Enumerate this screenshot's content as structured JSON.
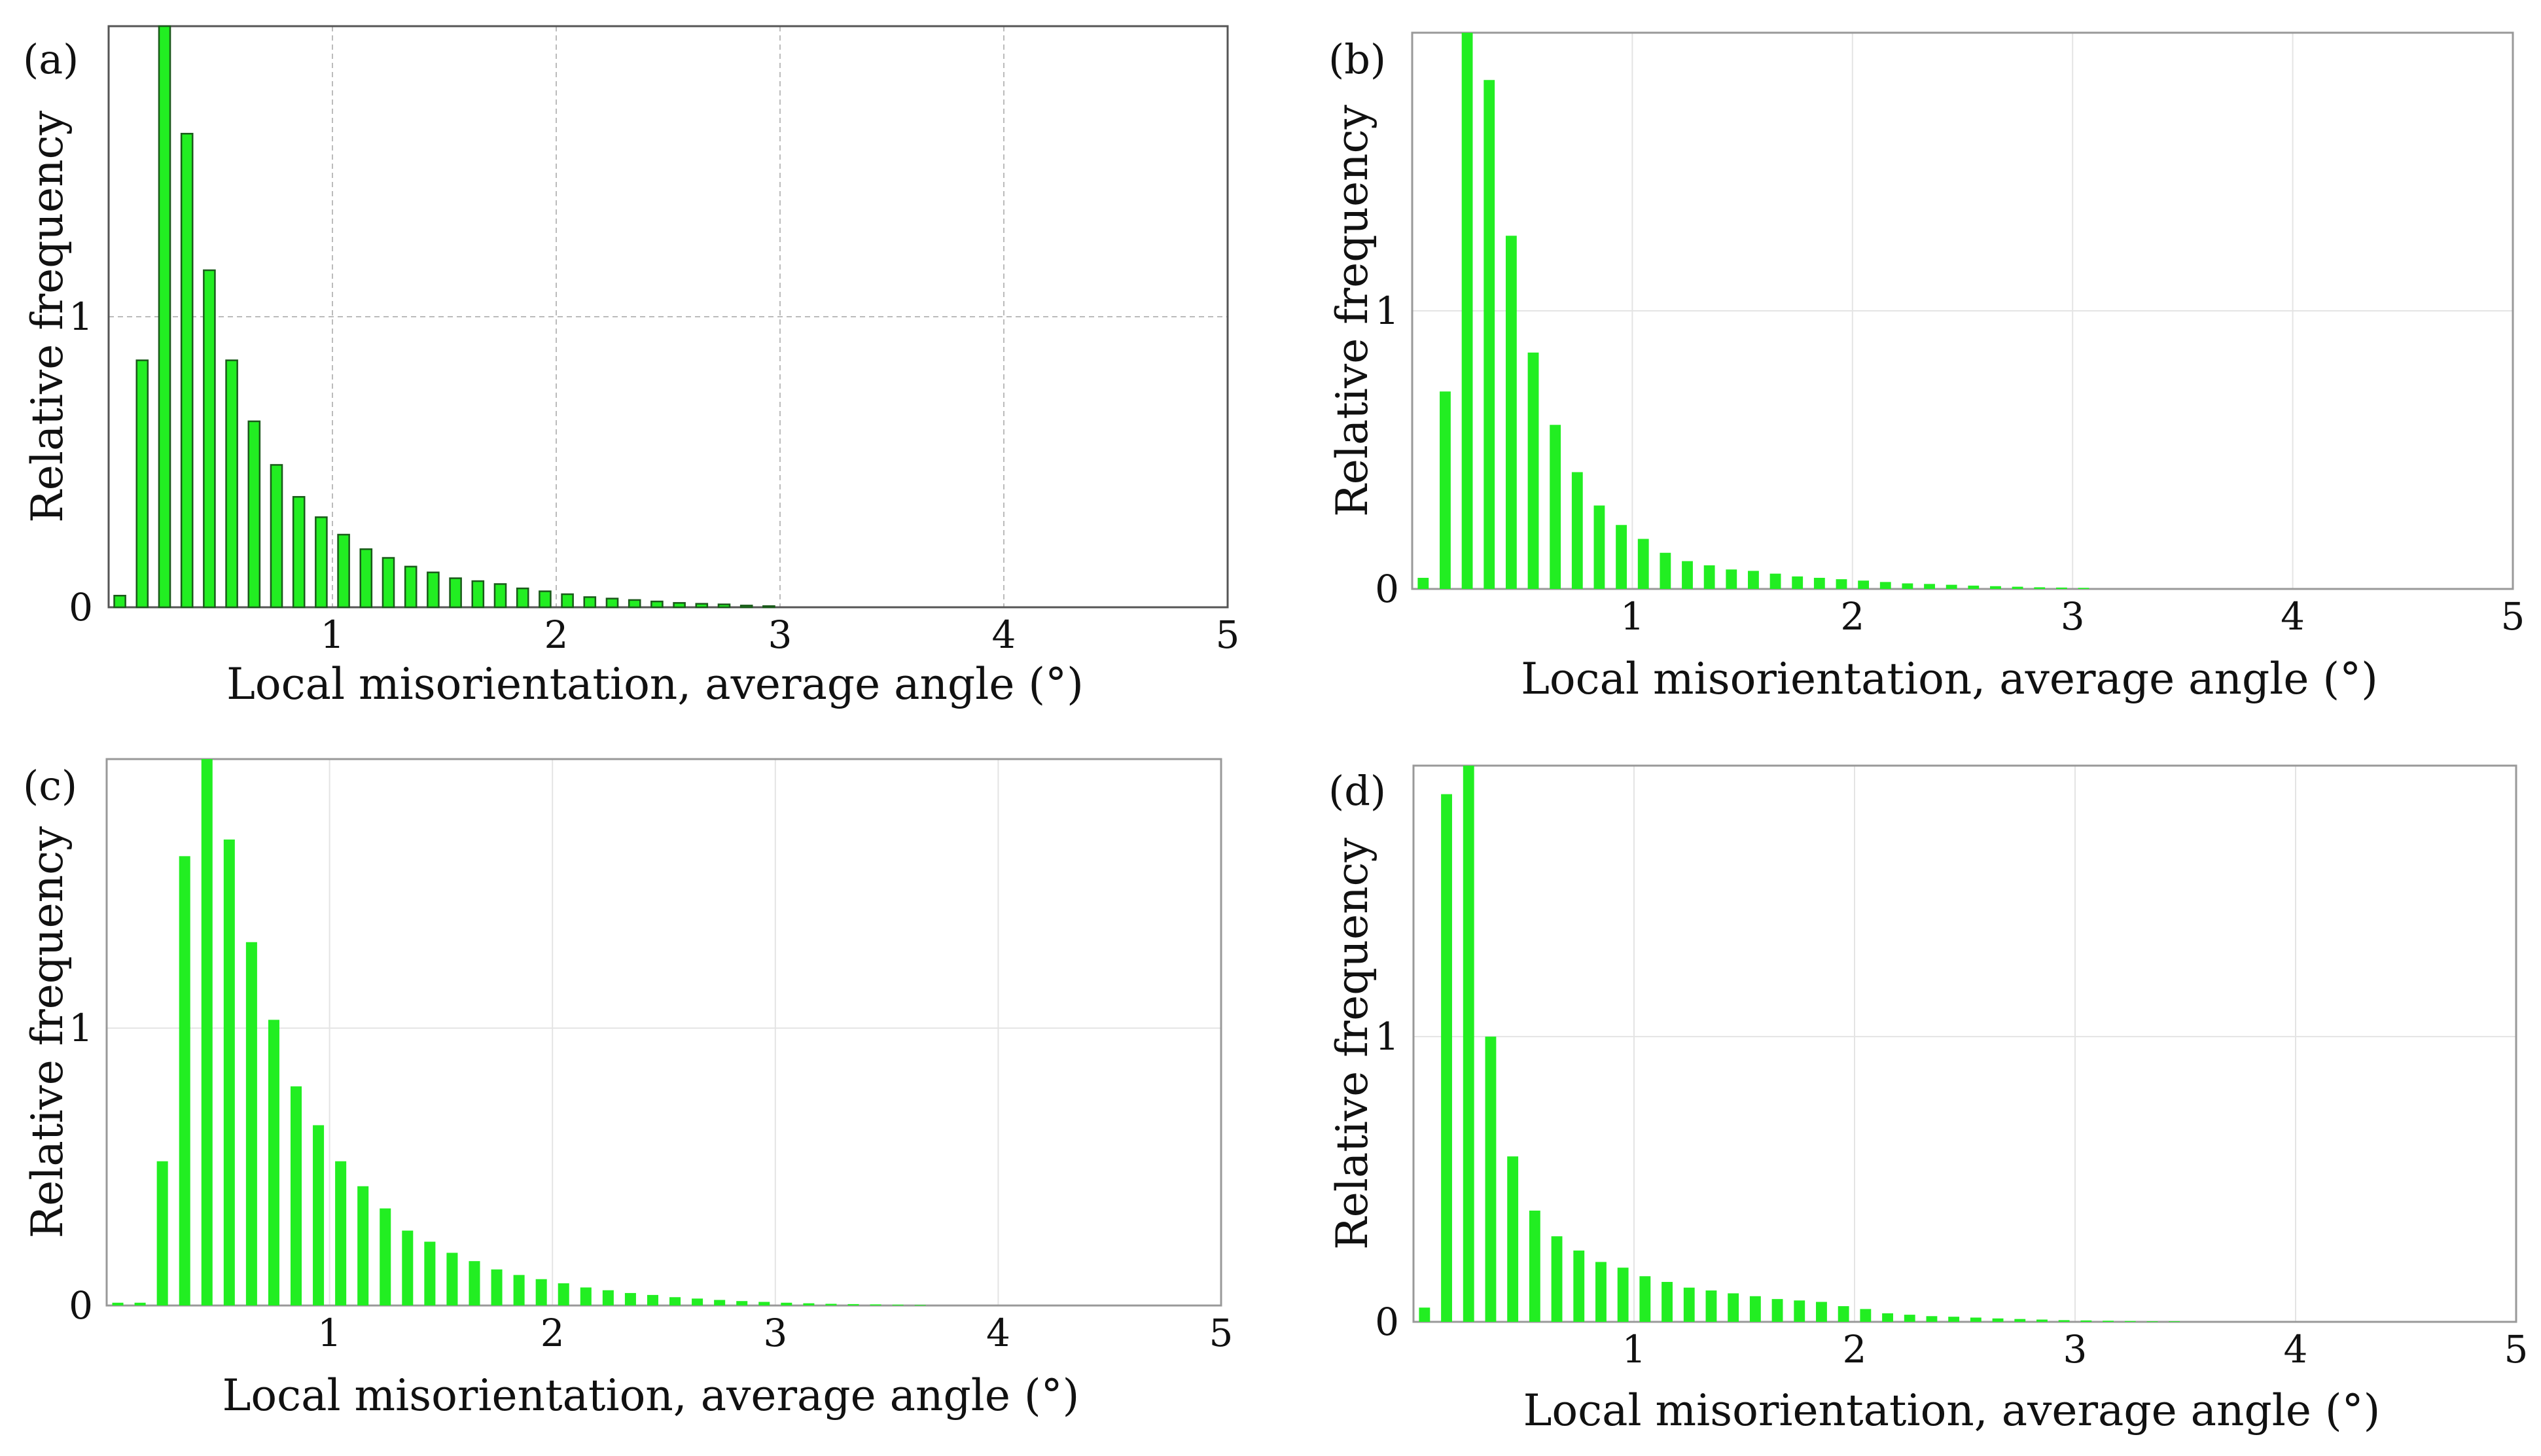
{
  "chart_data": [
    {
      "panel_label": "(a)",
      "type": "bar",
      "xlabel": "Local misorientation, average angle (°)",
      "ylabel": "Relative frequency",
      "xlim": [
        0,
        5
      ],
      "ylim": [
        0,
        2
      ],
      "xticks": [
        "1",
        "2",
        "3",
        "4",
        "5"
      ],
      "yticks": [
        "0",
        "1"
      ],
      "bar_width": 0.05,
      "x": [
        0.05,
        0.15,
        0.25,
        0.35,
        0.45,
        0.55,
        0.65,
        0.75,
        0.85,
        0.95,
        1.05,
        1.15,
        1.25,
        1.35,
        1.45,
        1.55,
        1.65,
        1.75,
        1.85,
        1.95,
        2.05,
        2.15,
        2.25,
        2.35,
        2.45,
        2.55,
        2.65,
        2.75,
        2.85,
        2.95
      ],
      "values": [
        0.04,
        0.85,
        2.0,
        1.63,
        1.16,
        0.85,
        0.64,
        0.49,
        0.38,
        0.31,
        0.25,
        0.2,
        0.17,
        0.14,
        0.12,
        0.1,
        0.09,
        0.08,
        0.065,
        0.055,
        0.045,
        0.035,
        0.03,
        0.025,
        0.02,
        0.015,
        0.012,
        0.01,
        0.006,
        0.004
      ],
      "grid": true,
      "color": "#22ee22",
      "bar_stroke": "#1a5a1a"
    },
    {
      "panel_label": "(b)",
      "type": "bar",
      "xlabel": "Local misorientation, average angle (°)",
      "ylabel": "Relative frequency",
      "xlim": [
        0,
        5
      ],
      "ylim": [
        0,
        2
      ],
      "xticks": [
        "1",
        "2",
        "3",
        "4",
        "5"
      ],
      "yticks": [
        "0",
        "1"
      ],
      "bar_width": 0.05,
      "x": [
        0.05,
        0.15,
        0.25,
        0.35,
        0.45,
        0.55,
        0.65,
        0.75,
        0.85,
        0.95,
        1.05,
        1.15,
        1.25,
        1.35,
        1.45,
        1.55,
        1.65,
        1.75,
        1.85,
        1.95,
        2.05,
        2.15,
        2.25,
        2.35,
        2.45,
        2.55,
        2.65,
        2.75,
        2.85,
        2.95,
        3.05
      ],
      "values": [
        0.04,
        0.71,
        2.0,
        1.83,
        1.27,
        0.85,
        0.59,
        0.42,
        0.3,
        0.23,
        0.18,
        0.13,
        0.1,
        0.085,
        0.07,
        0.065,
        0.055,
        0.045,
        0.04,
        0.035,
        0.03,
        0.025,
        0.02,
        0.018,
        0.015,
        0.012,
        0.01,
        0.008,
        0.006,
        0.005,
        0.004
      ],
      "grid": true,
      "color": "#22ee22",
      "bar_stroke": "none"
    },
    {
      "panel_label": "(c)",
      "type": "bar",
      "xlabel": "Local misorientation, average angle (°)",
      "ylabel": "Relative frequency",
      "xlim": [
        0,
        5
      ],
      "ylim": [
        0,
        1.97
      ],
      "xticks": [
        "1",
        "2",
        "3",
        "4",
        "5"
      ],
      "yticks": [
        "0",
        "1"
      ],
      "bar_width": 0.05,
      "x": [
        0.05,
        0.15,
        0.25,
        0.35,
        0.45,
        0.55,
        0.65,
        0.75,
        0.85,
        0.95,
        1.05,
        1.15,
        1.25,
        1.35,
        1.45,
        1.55,
        1.65,
        1.75,
        1.85,
        1.95,
        2.05,
        2.15,
        2.25,
        2.35,
        2.45,
        2.55,
        2.65,
        2.75,
        2.85,
        2.95,
        3.05,
        3.15,
        3.25,
        3.35,
        3.45,
        3.55,
        3.65
      ],
      "values": [
        0.01,
        0.01,
        0.52,
        1.62,
        1.97,
        1.68,
        1.31,
        1.03,
        0.79,
        0.65,
        0.52,
        0.43,
        0.35,
        0.27,
        0.23,
        0.19,
        0.16,
        0.13,
        0.11,
        0.095,
        0.08,
        0.065,
        0.055,
        0.045,
        0.038,
        0.03,
        0.025,
        0.02,
        0.016,
        0.013,
        0.01,
        0.008,
        0.006,
        0.005,
        0.004,
        0.003,
        0.002
      ],
      "grid": true,
      "color": "#22ee22",
      "bar_stroke": "none"
    },
    {
      "panel_label": "(d)",
      "type": "bar",
      "xlabel": "Local misorientation, average angle (°)",
      "ylabel": "Relative frequency",
      "xlim": [
        0,
        5
      ],
      "ylim": [
        0,
        1.95
      ],
      "xticks": [
        "1",
        "2",
        "3",
        "4",
        "5"
      ],
      "yticks": [
        "0",
        "1"
      ],
      "bar_width": 0.05,
      "x": [
        0.05,
        0.15,
        0.25,
        0.35,
        0.45,
        0.55,
        0.65,
        0.75,
        0.85,
        0.95,
        1.05,
        1.15,
        1.25,
        1.35,
        1.45,
        1.55,
        1.65,
        1.75,
        1.85,
        1.95,
        2.05,
        2.15,
        2.25,
        2.35,
        2.45,
        2.55,
        2.65,
        2.75,
        2.85,
        2.95,
        3.05,
        3.15,
        3.25,
        3.35,
        3.45
      ],
      "values": [
        0.05,
        1.85,
        1.95,
        1.0,
        0.58,
        0.39,
        0.3,
        0.25,
        0.21,
        0.19,
        0.16,
        0.14,
        0.12,
        0.11,
        0.1,
        0.09,
        0.08,
        0.075,
        0.07,
        0.055,
        0.045,
        0.03,
        0.025,
        0.02,
        0.018,
        0.015,
        0.012,
        0.01,
        0.008,
        0.006,
        0.005,
        0.004,
        0.003,
        0.002,
        0.002
      ],
      "grid": true,
      "color": "#22ee22",
      "bar_stroke": "none"
    }
  ]
}
